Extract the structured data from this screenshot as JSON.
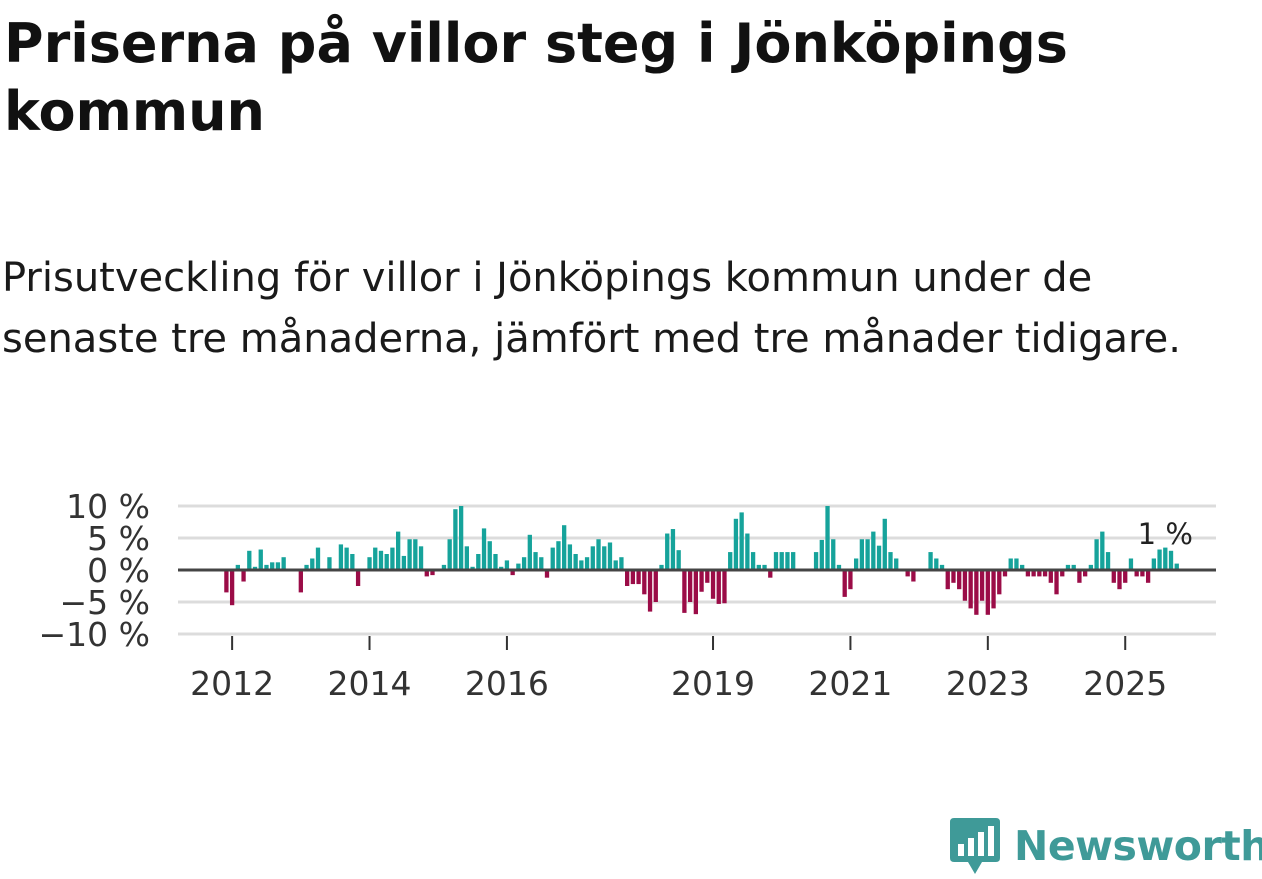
{
  "header": {
    "title": "Priserna på villor steg i Jönköpings kommun",
    "subtitle": "Prisutveckling för villor i Jönköpings kommun under de senaste tre månaderna, jämfört med tre månader tidigare."
  },
  "colors": {
    "positive": "#16a39b",
    "negative": "#9b0c47",
    "zero_line": "#444444",
    "grid": "#dcdcdc",
    "brand": "#3f9a98"
  },
  "brand": {
    "name": "Newsworthy",
    "icon": "newsworthy-logo-icon"
  },
  "chart_data": {
    "type": "bar",
    "title": "",
    "xlabel": "",
    "ylabel": "",
    "y_unit": "%",
    "ylim": [
      -10,
      10
    ],
    "grid": true,
    "x_start": "2011-12",
    "frequency": "monthly",
    "y_tick_labels": [
      "10 %",
      "5 %",
      "0 %",
      "−5 %",
      "−10 %"
    ],
    "y_ticks": [
      10,
      5,
      0,
      -5,
      -10
    ],
    "x_tick_labels": [
      {
        "label": "2012",
        "date": "2012-01"
      },
      {
        "label": "2014",
        "date": "2014-01"
      },
      {
        "label": "2016",
        "date": "2016-01"
      },
      {
        "label": "2019",
        "date": "2019-01"
      },
      {
        "label": "2021",
        "date": "2021-01"
      },
      {
        "label": "2023",
        "date": "2023-01"
      },
      {
        "label": "2025",
        "date": "2025-01"
      }
    ],
    "annotation": {
      "text": "1 %",
      "date": "2025-08"
    },
    "values": [
      -3.5,
      -5.5,
      0.8,
      -1.8,
      3.0,
      0.5,
      3.2,
      0.8,
      1.2,
      1.2,
      2.0,
      0.0,
      0.0,
      -3.5,
      0.8,
      1.8,
      3.5,
      0.0,
      2.0,
      0.0,
      4.0,
      3.5,
      2.5,
      -2.5,
      0.0,
      2.0,
      3.5,
      3.0,
      2.5,
      3.5,
      6.0,
      2.2,
      4.8,
      4.8,
      3.7,
      -1.0,
      -0.8,
      0.0,
      0.8,
      4.8,
      9.5,
      10.0,
      3.7,
      0.5,
      2.5,
      6.5,
      4.5,
      2.5,
      0.5,
      1.5,
      -0.8,
      1.0,
      2.0,
      5.5,
      2.8,
      2.0,
      -1.2,
      3.5,
      4.5,
      7.0,
      4.0,
      2.5,
      1.5,
      2.0,
      3.7,
      4.8,
      3.7,
      4.3,
      1.5,
      2.0,
      -2.5,
      -2.2,
      -2.2,
      -3.8,
      -6.5,
      -5.0,
      0.8,
      5.7,
      6.4,
      3.1,
      -6.7,
      -5.0,
      -6.9,
      -3.4,
      -2.0,
      -4.5,
      -5.3,
      -5.2,
      2.8,
      8.0,
      9.0,
      5.7,
      2.8,
      0.8,
      0.8,
      -1.2,
      2.8,
      2.8,
      2.8,
      2.8,
      0.0,
      0.0,
      0.0,
      2.8,
      4.7,
      10.0,
      4.8,
      0.8,
      -4.2,
      -3.0,
      1.8,
      4.8,
      4.8,
      6.0,
      3.8,
      8.0,
      2.8,
      1.8,
      0.0,
      -1.0,
      -1.8,
      0.0,
      0.0,
      2.8,
      1.8,
      0.8,
      -3.0,
      -2.0,
      -3.0,
      -4.8,
      -6.0,
      -7.0,
      -4.8,
      -7.0,
      -6.0,
      -3.8,
      -1.0,
      1.8,
      1.8,
      0.8,
      -1.0,
      -1.0,
      -1.0,
      -1.0,
      -2.0,
      -3.8,
      -1.0,
      0.8,
      0.8,
      -2.0,
      -1.0,
      0.8,
      4.8,
      6.0,
      2.8,
      -2.0,
      -3.0,
      -2.0,
      1.8,
      -1.0,
      -1.0,
      -2.0,
      1.8,
      3.2,
      3.5,
      3.0,
      1.0
    ]
  }
}
